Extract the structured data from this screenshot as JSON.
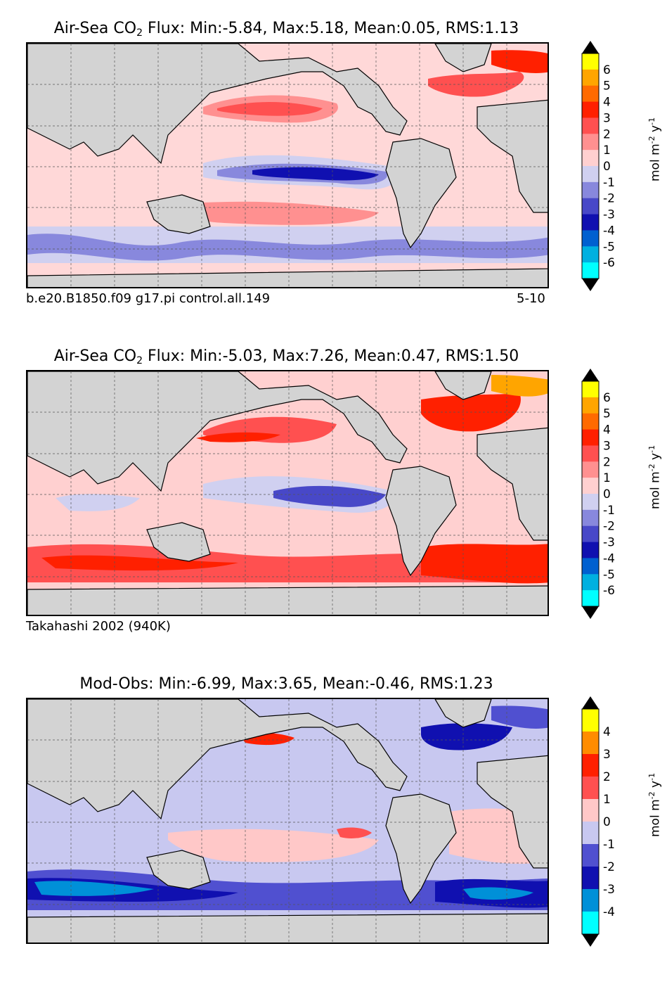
{
  "panels": [
    {
      "title_prefix": "Air-Sea CO",
      "title_sub": "2",
      "title_suffix": " Flux: Min:-5.84, Max:5.18, Mean:0.05, RMS:1.13",
      "caption_left": "b.e20.B1850.f09 g17.pi control.all.149",
      "caption_right": "5-10",
      "colorbar_ticks": [
        "6",
        "5",
        "4",
        "3",
        "2",
        "1",
        "0",
        "-1",
        "-2",
        "-3",
        "-4",
        "-5",
        "-6"
      ],
      "colorbar_colors": [
        "#ffff00",
        "#ffa500",
        "#ff6a00",
        "#ff2000",
        "#ff5050",
        "#ff9090",
        "#ffd0d0",
        "#d0d0f0",
        "#8888dd",
        "#4848c8",
        "#1010b0",
        "#0060d0",
        "#00b0e0",
        "#00ffff"
      ],
      "colorbar_unit": "mol m",
      "colorbar_unit_exp": "-2",
      "colorbar_unit_mid": " y",
      "colorbar_unit_exp2": "-1"
    },
    {
      "title_prefix": "Air-Sea CO",
      "title_sub": "2",
      "title_suffix": " Flux: Min:-5.03, Max:7.26, Mean:0.47, RMS:1.50",
      "caption_left": "Takahashi 2002 (940K)",
      "caption_right": "",
      "colorbar_ticks": [
        "6",
        "5",
        "4",
        "3",
        "2",
        "1",
        "0",
        "-1",
        "-2",
        "-3",
        "-4",
        "-5",
        "-6"
      ],
      "colorbar_colors": [
        "#ffff00",
        "#ffa500",
        "#ff6a00",
        "#ff2000",
        "#ff5050",
        "#ff9090",
        "#ffd0d0",
        "#d0d0f0",
        "#8888dd",
        "#4848c8",
        "#1010b0",
        "#0060d0",
        "#00b0e0",
        "#00ffff"
      ],
      "colorbar_unit": "mol m",
      "colorbar_unit_exp": "-2",
      "colorbar_unit_mid": " y",
      "colorbar_unit_exp2": "-1"
    },
    {
      "title_prefix": "Mod-Obs: Min:-6.99, Max:3.65, Mean:-0.46, RMS:1.23",
      "title_sub": "",
      "title_suffix": "",
      "caption_left": "",
      "caption_right": "",
      "colorbar_ticks": [
        "4",
        "3",
        "2",
        "1",
        "0",
        "-1",
        "-2",
        "-3",
        "-4"
      ],
      "colorbar_colors": [
        "#ffff00",
        "#ff8c00",
        "#ff2000",
        "#ff5050",
        "#ffc8c8",
        "#c8c8f0",
        "#5050d0",
        "#1010b0",
        "#0090d8",
        "#00ffff"
      ],
      "colorbar_unit": "mol m",
      "colorbar_unit_exp": "-2",
      "colorbar_unit_mid": " y",
      "colorbar_unit_exp2": "-1"
    }
  ]
}
